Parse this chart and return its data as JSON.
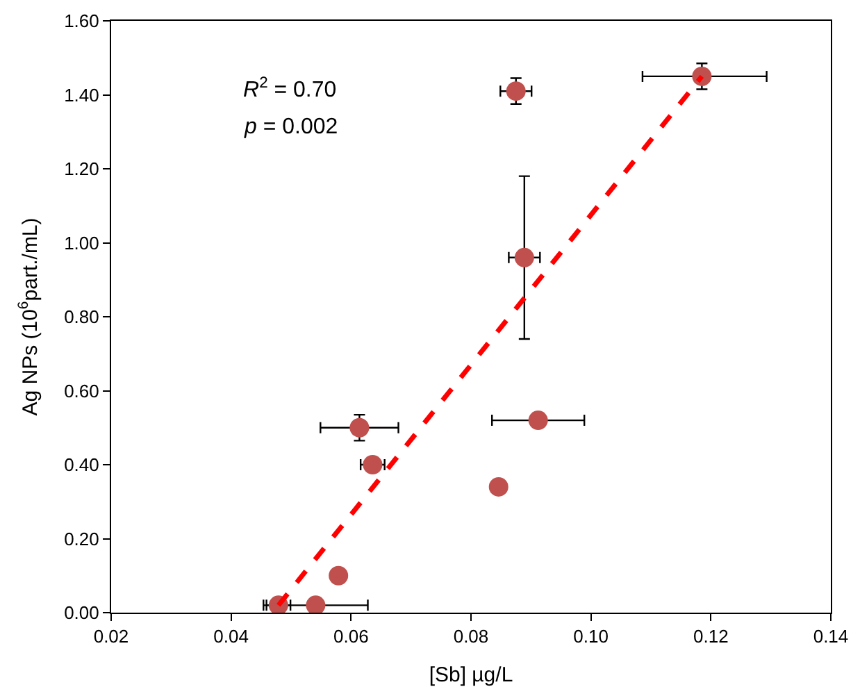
{
  "chart_data": {
    "type": "scatter",
    "xlabel": "[Sb] µg/L",
    "ylabel": "Ag NPs (10$^{6}$part./mL)",
    "annotations": [
      "R$^{2}$ = 0.70",
      "p = 0.002"
    ],
    "series": [
      {
        "color": "#c0504d",
        "x": [
          0.0479,
          0.0541,
          0.0579,
          0.0614,
          0.0636,
          0.0846,
          0.0875,
          0.0889,
          0.0912,
          0.1185
        ],
        "values": [
          0.02,
          0.02,
          0.1,
          0.5,
          0.4,
          0.34,
          1.41,
          0.96,
          0.52,
          1.45
        ],
        "errors": [
          null,
          null,
          null,
          0.035,
          null,
          null,
          0.035,
          0.22,
          null,
          0.035
        ],
        "xerrors": [
          0.002,
          0.0087,
          null,
          0.0065,
          0.002,
          null,
          0.0026,
          0.0026,
          0.0077,
          [
            0.1086,
            0.1293
          ]
        ]
      },
      {
        "type": "line",
        "color": "#ff0000",
        "line_style": "dashed",
        "x": [
          0.0479,
          0.1185
        ],
        "values": [
          0.02,
          1.45
        ]
      }
    ],
    "xlim": [
      0.02,
      0.14
    ],
    "xticks": [
      {
        "value": 0.02,
        "label": "0.02"
      },
      {
        "value": 0.04,
        "label": "0.04"
      },
      {
        "value": 0.06,
        "label": "0.06"
      },
      {
        "value": 0.08,
        "label": "0.08"
      },
      {
        "value": 0.1,
        "label": "0.10"
      },
      {
        "value": 0.12,
        "label": "0.12"
      },
      {
        "value": 0.14,
        "label": "0.14"
      }
    ],
    "ylim": [
      0,
      1.6
    ],
    "yticks": [
      {
        "value": 0,
        "label": "0.00"
      },
      {
        "value": 0.2,
        "label": "0.20"
      },
      {
        "value": 0.4,
        "label": "0.40"
      },
      {
        "value": 0.6,
        "label": "0.60"
      },
      {
        "value": 0.8,
        "label": "0.80"
      },
      {
        "value": 1.0,
        "label": "1.00"
      },
      {
        "value": 1.2,
        "label": "1.20"
      },
      {
        "value": 1.4,
        "label": "1.40"
      },
      {
        "value": 1.6,
        "label": "1.60"
      }
    ]
  }
}
